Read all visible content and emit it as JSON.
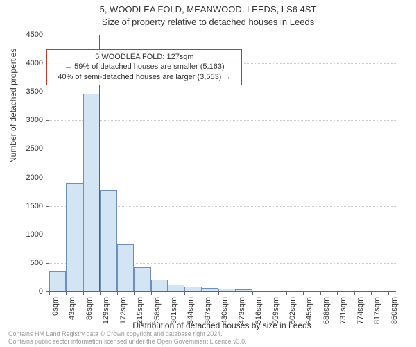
{
  "title_line1": "5, WOODLEA FOLD, MEANWOOD, LEEDS, LS6 4ST",
  "title_line2": "Size of property relative to detached houses in Leeds",
  "ylabel": "Number of detached properties",
  "xlabel": "Distribution of detached houses by size in Leeds",
  "footer_line1": "Contains HM Land Registry data © Crown copyright and database right 2024.",
  "footer_line2": "Contains public sector information licensed under the Open Government Licence v3.0.",
  "chart": {
    "type": "histogram",
    "ylim": [
      0,
      4500
    ],
    "ytick_step": 500,
    "yticks": [
      0,
      500,
      1000,
      1500,
      2000,
      2500,
      3000,
      3500,
      4000,
      4500
    ],
    "xlim": [
      0,
      880
    ],
    "xticks": [
      0,
      43,
      86,
      129,
      172,
      215,
      258,
      301,
      344,
      387,
      430,
      473,
      516,
      559,
      602,
      645,
      688,
      731,
      774,
      817,
      860
    ],
    "xtick_suffix": "sqm",
    "bar_color": "#d3e4f5",
    "bar_border_color": "#6c8fbf",
    "bar_width_data": 43,
    "bars": [
      {
        "x": 0,
        "y": 350
      },
      {
        "x": 43,
        "y": 1900
      },
      {
        "x": 86,
        "y": 3470
      },
      {
        "x": 129,
        "y": 1770
      },
      {
        "x": 172,
        "y": 830
      },
      {
        "x": 215,
        "y": 430
      },
      {
        "x": 258,
        "y": 210
      },
      {
        "x": 301,
        "y": 120
      },
      {
        "x": 344,
        "y": 90
      },
      {
        "x": 387,
        "y": 60
      },
      {
        "x": 430,
        "y": 50
      },
      {
        "x": 473,
        "y": 40
      }
    ],
    "grid_color": "#cccccc",
    "background_color": "#ffffff",
    "axis_color": "#666666",
    "reference_line": {
      "x": 127,
      "color": "#c0392b"
    },
    "annotation": {
      "line1": "5 WOODLEA FOLD: 127sqm",
      "line2": "← 59% of detached houses are smaller (5,163)",
      "line3": "40% of semi-detached houses are larger (3,553) →",
      "border_color": "#c0392b",
      "x_center_data": 240,
      "y_top_data": 4250
    },
    "tick_fontsize": 11,
    "label_fontsize": 12,
    "title_fontsize": 13
  }
}
